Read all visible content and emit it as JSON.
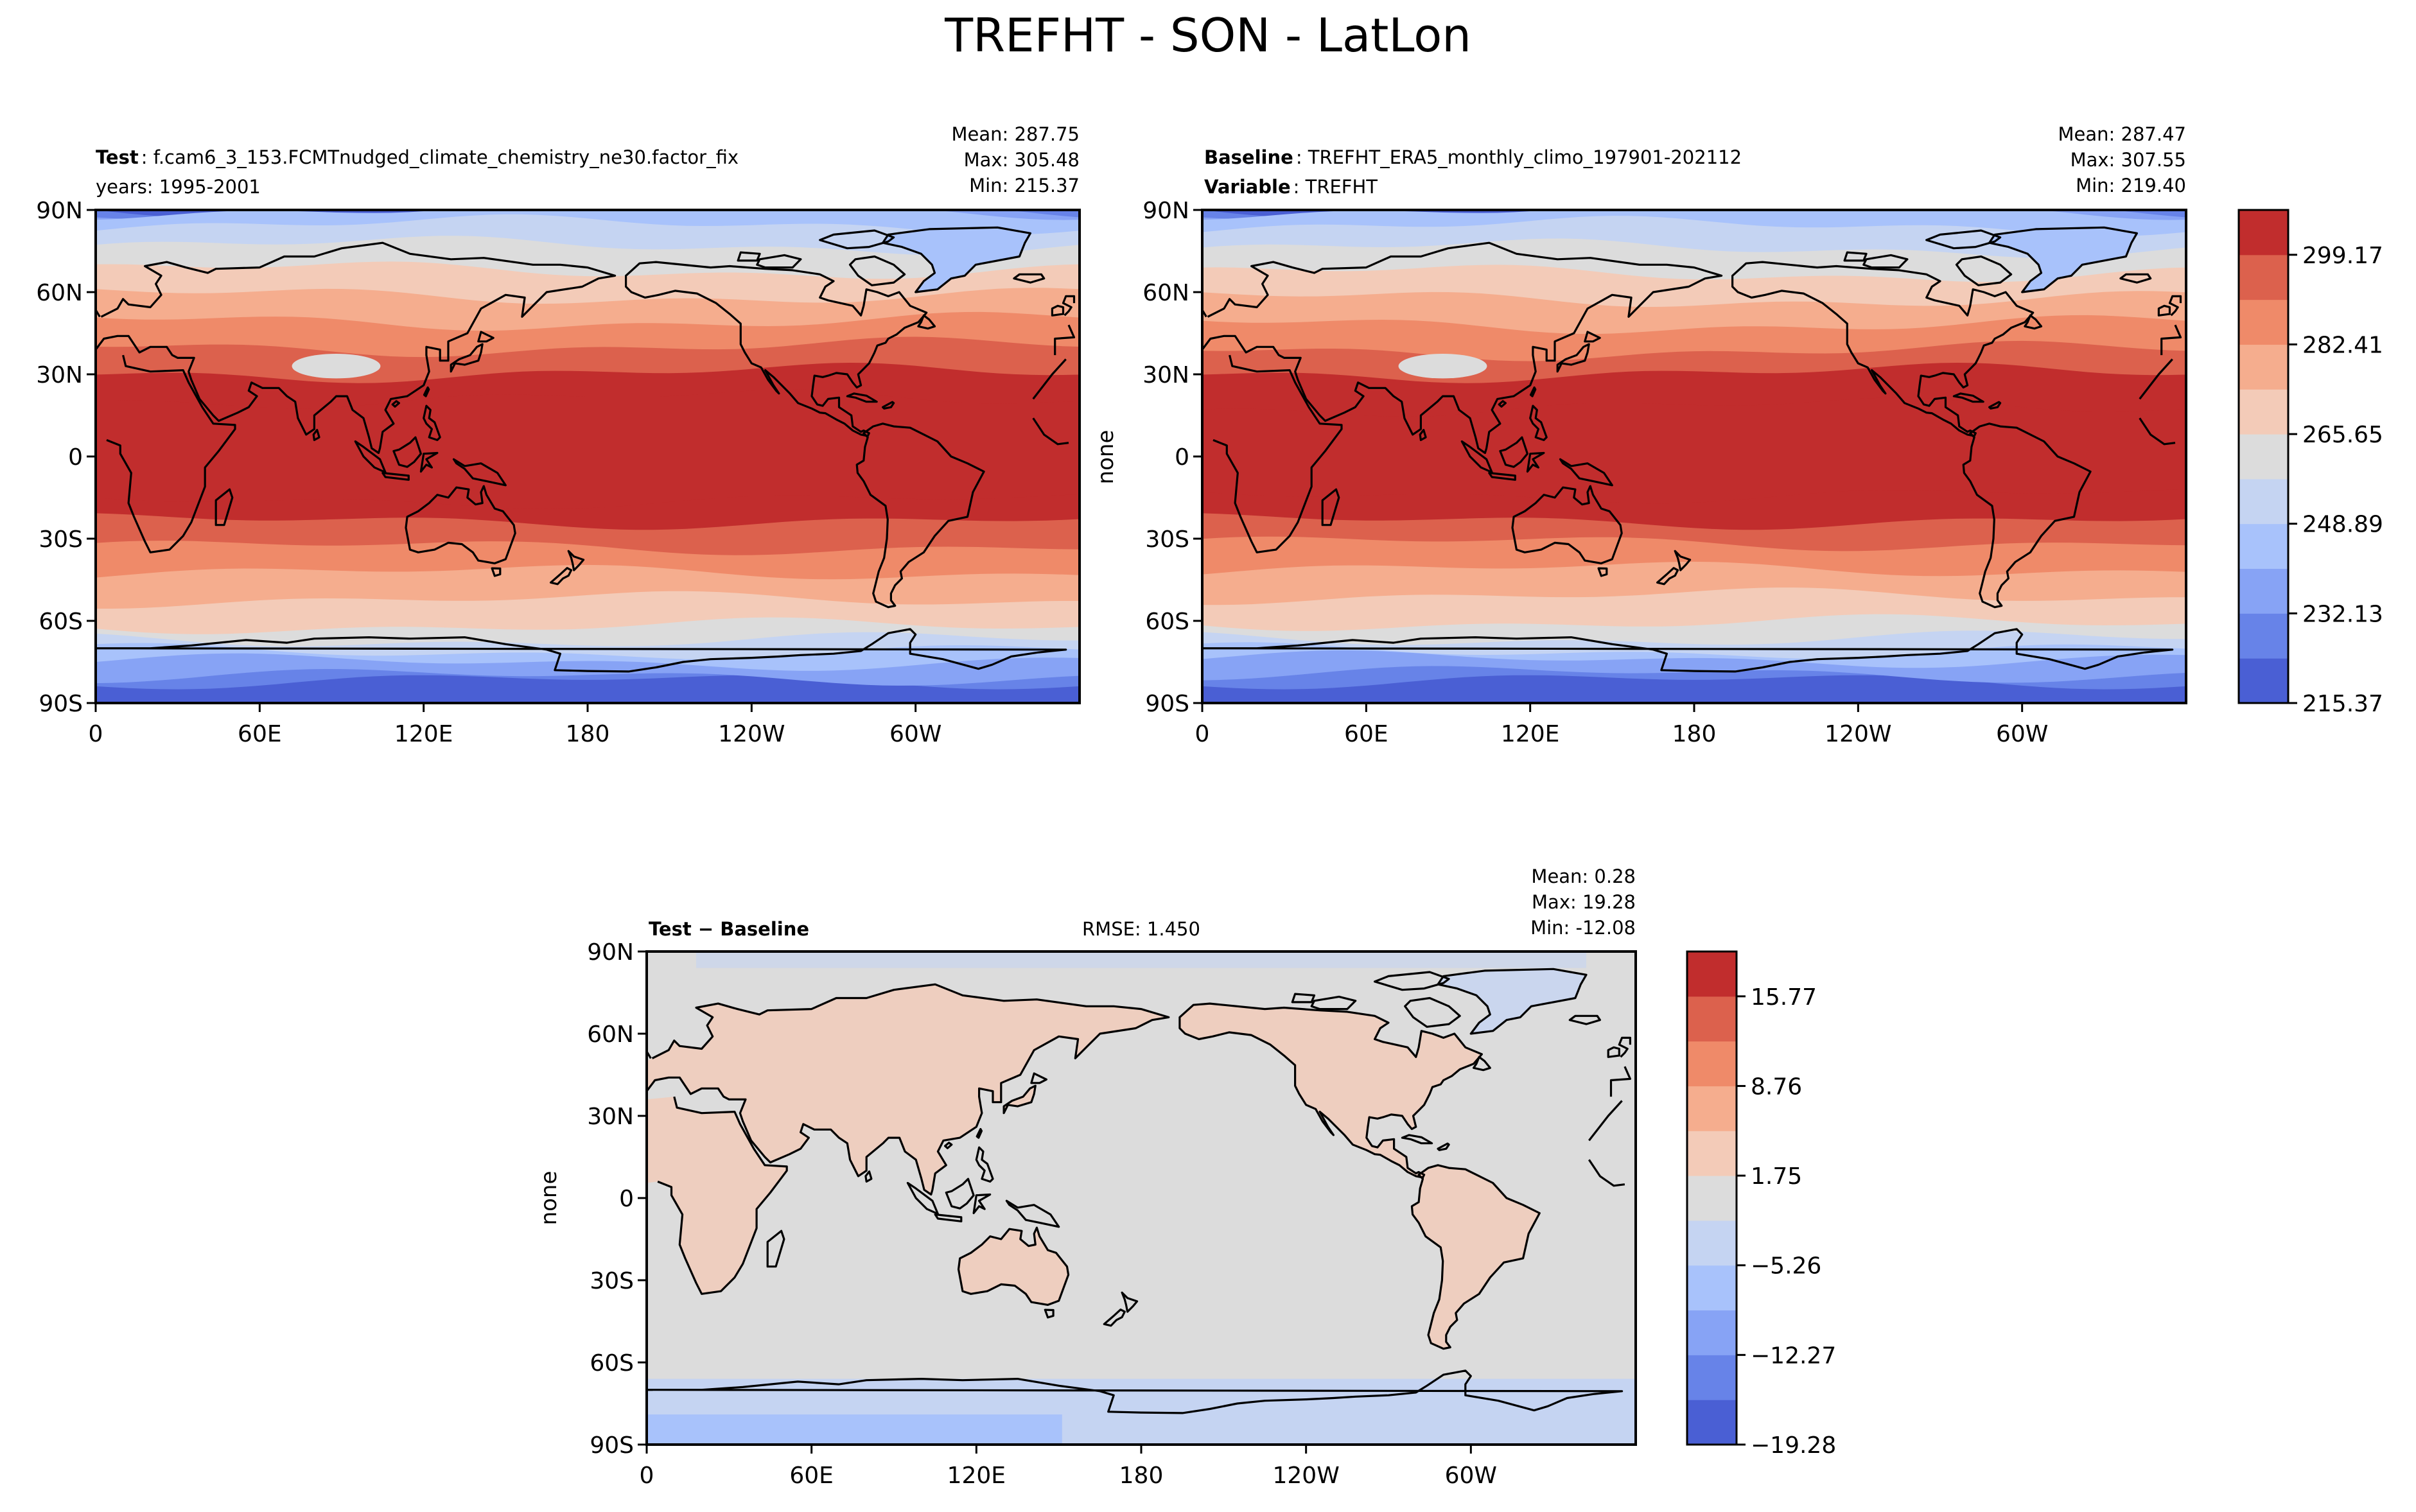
{
  "figure_title": "TREFHT - SON - LatLon",
  "chart_data": [
    {
      "type": "heatmap",
      "panel": "test",
      "label_bold": "Test",
      "label_text": ": f.cam6_3_153.FCMTnudged_climate_chemistry_ne30.factor_fix",
      "label_line2": "years: 1995-2001",
      "stats": [
        "Mean: 287.75",
        "Max: 305.48",
        "Min: 215.37"
      ],
      "ylabel": "",
      "xticks": [
        "0",
        "60E",
        "120E",
        "180",
        "120W",
        "60W"
      ],
      "yticks": [
        "90N",
        "60N",
        "30N",
        "0",
        "30S",
        "60S",
        "90S"
      ],
      "xlim": [
        0,
        360
      ],
      "ylim": [
        -90,
        90
      ],
      "band_levels": [
        220,
        228,
        238,
        250,
        260,
        268,
        276,
        284,
        292,
        298,
        302
      ]
    },
    {
      "type": "heatmap",
      "panel": "baseline",
      "label_bold": "Baseline",
      "label_text": ": TREFHT_ERA5_monthly_climo_197901-202112",
      "label2_bold": "Variable",
      "label2_text": ": TREFHT",
      "stats": [
        "Mean: 287.47",
        "Max: 307.55",
        "Min: 219.40"
      ],
      "ylabel": "none",
      "xticks": [
        "0",
        "60E",
        "120E",
        "180",
        "120W",
        "60W"
      ],
      "yticks": [
        "90N",
        "60N",
        "30N",
        "0",
        "30S",
        "60S",
        "90S"
      ],
      "xlim": [
        0,
        360
      ],
      "ylim": [
        -90,
        90
      ],
      "band_levels": [
        222,
        230,
        240,
        251,
        261,
        269,
        277,
        285,
        293,
        298,
        303
      ]
    },
    {
      "type": "heatmap",
      "panel": "difference",
      "label_bold": "Test − Baseline",
      "rmse": "RMSE: 1.450",
      "stats": [
        "Mean:  0.28",
        "Max: 19.28",
        "Min: -12.08"
      ],
      "ylabel": "none",
      "xticks": [
        "0",
        "60E",
        "120E",
        "180",
        "120W",
        "60W"
      ],
      "yticks": [
        "90N",
        "60N",
        "30N",
        "0",
        "30S",
        "60S",
        "90S"
      ]
    }
  ],
  "colorbars": {
    "main": {
      "ticks": [
        "299.17",
        "282.41",
        "265.65",
        "248.89",
        "232.13",
        "215.37"
      ],
      "colors": [
        "#4a5fd4",
        "#6783e8",
        "#87a3f5",
        "#a8c2fb",
        "#c5d4f2",
        "#dcdcdc",
        "#f3cbb8",
        "#f5ad8e",
        "#ef8a69",
        "#dc614d",
        "#c12d2d"
      ]
    },
    "diff": {
      "ticks": [
        "15.77",
        "8.76",
        "1.75",
        "−5.26",
        "−12.27",
        "−19.28"
      ],
      "colors": [
        "#4a5fd4",
        "#6783e8",
        "#87a3f5",
        "#a8c2fb",
        "#c5d4f2",
        "#dcdcdc",
        "#f3cbb8",
        "#f5ad8e",
        "#ef8a69",
        "#dc614d",
        "#c12d2d"
      ]
    }
  }
}
